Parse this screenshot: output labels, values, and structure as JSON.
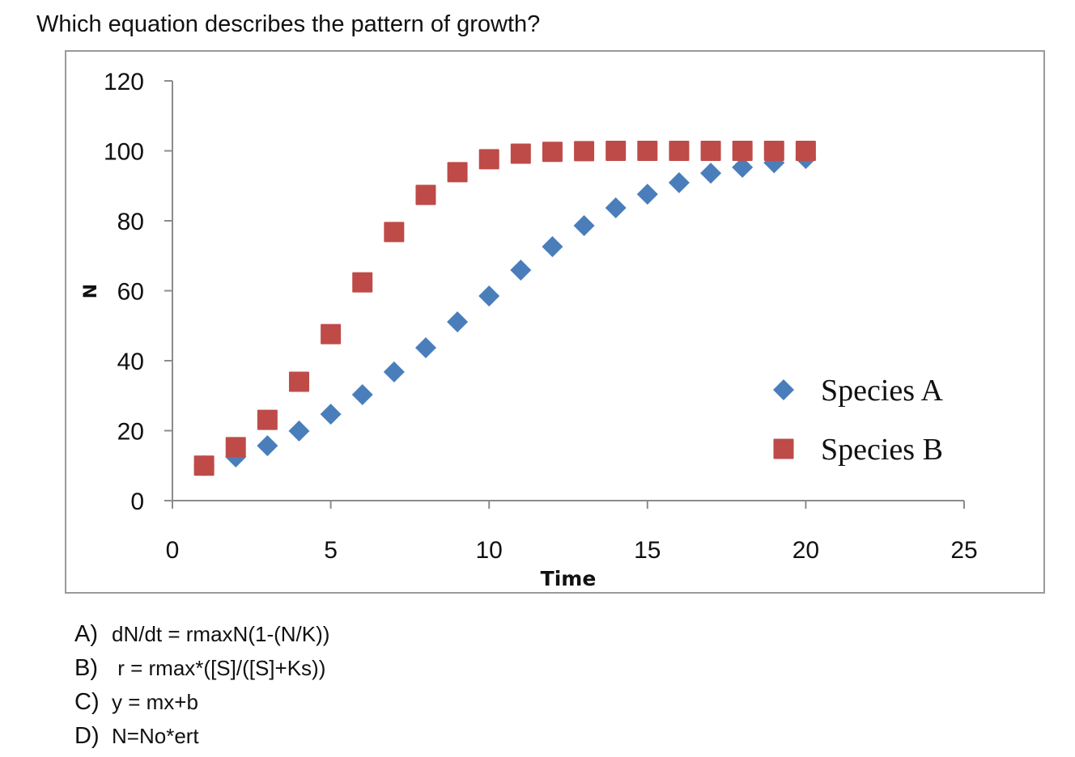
{
  "question": "Which equation describes the pattern of growth?",
  "chart_data": {
    "type": "scatter",
    "title": "",
    "xlabel": "Time",
    "ylabel": "N",
    "xlim": [
      0,
      25
    ],
    "ylim": [
      0,
      120
    ],
    "xticks": [
      0,
      5,
      10,
      15,
      20,
      25
    ],
    "yticks": [
      0,
      20,
      40,
      60,
      80,
      100,
      120
    ],
    "grid": false,
    "legend_position": "right",
    "series": [
      {
        "name": "Species A",
        "marker": "diamond",
        "color": "#4a7ebb",
        "x": [
          1,
          2,
          3,
          4,
          5,
          6,
          7,
          8,
          9,
          10,
          11,
          12,
          13,
          14,
          15,
          16,
          17,
          18,
          19,
          20
        ],
        "y": [
          10,
          12.5,
          15.7,
          19.9,
          24.7,
          30.3,
          36.8,
          43.7,
          51.1,
          58.5,
          65.9,
          72.6,
          78.6,
          83.7,
          87.6,
          90.9,
          93.6,
          95.3,
          96.6,
          97.8
        ]
      },
      {
        "name": "Species B",
        "marker": "square",
        "color": "#be4b48",
        "x": [
          1,
          2,
          3,
          4,
          5,
          6,
          7,
          8,
          9,
          10,
          11,
          12,
          13,
          14,
          15,
          16,
          17,
          18,
          19,
          20
        ],
        "y": [
          10,
          15.3,
          23.1,
          34,
          47.6,
          62.4,
          76.8,
          87.4,
          93.9,
          97.6,
          99.2,
          99.7,
          99.9,
          100,
          100,
          100,
          100,
          100,
          100,
          100
        ]
      }
    ]
  },
  "answers": [
    {
      "letter": "A)",
      "text": "dN/dt = rmaxN(1-(N/K))"
    },
    {
      "letter": "B)",
      "text": " r = rmax*([S]/([S]+Ks))"
    },
    {
      "letter": "C)",
      "text": "y = mx+b"
    },
    {
      "letter": "D)",
      "text": "N=No*ert"
    }
  ]
}
